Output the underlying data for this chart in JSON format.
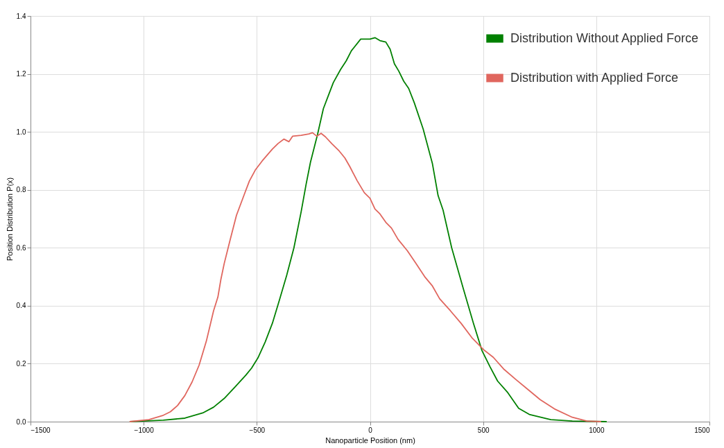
{
  "chart_data": {
    "type": "line",
    "xlabel": "Nanoparticle Position (nm)",
    "ylabel": "Position Distribution P(x)",
    "xlim": [
      -1500,
      1500
    ],
    "ylim": [
      0,
      1.4
    ],
    "xticks": [
      {
        "value": -1500,
        "label": "−1500"
      },
      {
        "value": -1000,
        "label": "−1000"
      },
      {
        "value": -500,
        "label": "−500"
      },
      0,
      500,
      1000,
      1500
    ],
    "yticks": [
      {
        "value": 0,
        "label": "0.0"
      },
      0.2,
      0.4,
      0.6,
      0.8,
      {
        "value": 1,
        "label": "1.0"
      },
      1.2,
      1.4
    ],
    "grid": true,
    "legend": "top right",
    "marker": "none",
    "line_style": "solid",
    "series": [
      {
        "name": "Distribution Without Applied Force",
        "color": "#008000",
        "x": [
          -1062,
          -1002,
          -913,
          -818,
          -739,
          -691,
          -644,
          -596,
          -549,
          -523,
          -495,
          -463,
          -431,
          -400,
          -368,
          -336,
          -304,
          -282,
          -263,
          -232,
          -206,
          -184,
          -162,
          -130,
          -105,
          -82,
          -41,
          0,
          22,
          44,
          70,
          89,
          108,
          127,
          149,
          171,
          196,
          235,
          276,
          301,
          323,
          361,
          412,
          457,
          495,
          530,
          564,
          609,
          657,
          704,
          799,
          894,
          1046
        ],
        "values": [
          0,
          0.002,
          0.005,
          0.012,
          0.03,
          0.05,
          0.08,
          0.12,
          0.16,
          0.185,
          0.22,
          0.275,
          0.34,
          0.42,
          0.505,
          0.6,
          0.725,
          0.82,
          0.895,
          0.99,
          1.08,
          1.125,
          1.17,
          1.215,
          1.245,
          1.28,
          1.32,
          1.32,
          1.325,
          1.315,
          1.31,
          1.285,
          1.235,
          1.21,
          1.175,
          1.15,
          1.1,
          1.01,
          0.89,
          0.78,
          0.73,
          0.6,
          0.46,
          0.34,
          0.245,
          0.19,
          0.14,
          0.1,
          0.046,
          0.025,
          0.007,
          0.002,
          0
        ]
      },
      {
        "name": "Distribution with Applied Force",
        "color": "#e0665e",
        "x": [
          -1062,
          -977,
          -913,
          -882,
          -850,
          -818,
          -786,
          -755,
          -723,
          -691,
          -672,
          -659,
          -644,
          -618,
          -590,
          -555,
          -533,
          -507,
          -476,
          -431,
          -406,
          -380,
          -358,
          -342,
          -304,
          -270,
          -254,
          -235,
          -216,
          -197,
          -168,
          -136,
          -111,
          -89,
          -57,
          -25,
          0,
          22,
          44,
          70,
          95,
          124,
          165,
          203,
          244,
          276,
          308,
          355,
          403,
          450,
          501,
          545,
          593,
          647,
          704,
          752,
          815,
          894,
          958,
          1021
        ],
        "values": [
          0,
          0.007,
          0.022,
          0.034,
          0.056,
          0.09,
          0.137,
          0.195,
          0.278,
          0.383,
          0.43,
          0.49,
          0.546,
          0.627,
          0.712,
          0.785,
          0.83,
          0.868,
          0.9,
          0.941,
          0.96,
          0.975,
          0.966,
          0.985,
          0.988,
          0.993,
          0.997,
          0.985,
          0.995,
          0.983,
          0.959,
          0.934,
          0.91,
          0.88,
          0.832,
          0.79,
          0.771,
          0.734,
          0.717,
          0.688,
          0.668,
          0.629,
          0.59,
          0.546,
          0.498,
          0.468,
          0.424,
          0.383,
          0.339,
          0.29,
          0.249,
          0.222,
          0.18,
          0.144,
          0.107,
          0.076,
          0.044,
          0.015,
          0.002,
          0
        ]
      }
    ]
  }
}
